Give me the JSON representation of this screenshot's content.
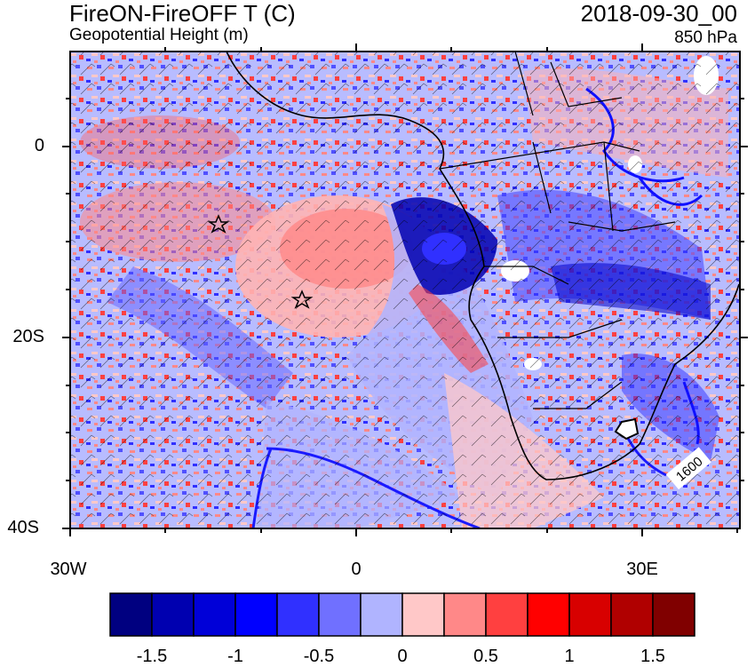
{
  "header": {
    "title": "FireON-FireOFF T (C)",
    "subtitle": "Geopotential Height (m)",
    "date": "2018-09-30_00",
    "level": "850 hPa"
  },
  "axes": {
    "lat_labels": [
      "0",
      "20S",
      "40S"
    ],
    "lon_labels": [
      "30W",
      "0",
      "30E"
    ]
  },
  "contour_label": "1600",
  "colorbar": {
    "colors": [
      "#000080",
      "#0000b0",
      "#0000d8",
      "#0000ff",
      "#3030ff",
      "#7070ff",
      "#b0b4ff",
      "#ffc8c8",
      "#ff8888",
      "#ff4040",
      "#ff0000",
      "#d80000",
      "#b00000",
      "#800000"
    ],
    "labels": [
      "-1.5",
      "-1",
      "-0.5",
      "0",
      "0.5",
      "1",
      "1.5"
    ]
  }
}
